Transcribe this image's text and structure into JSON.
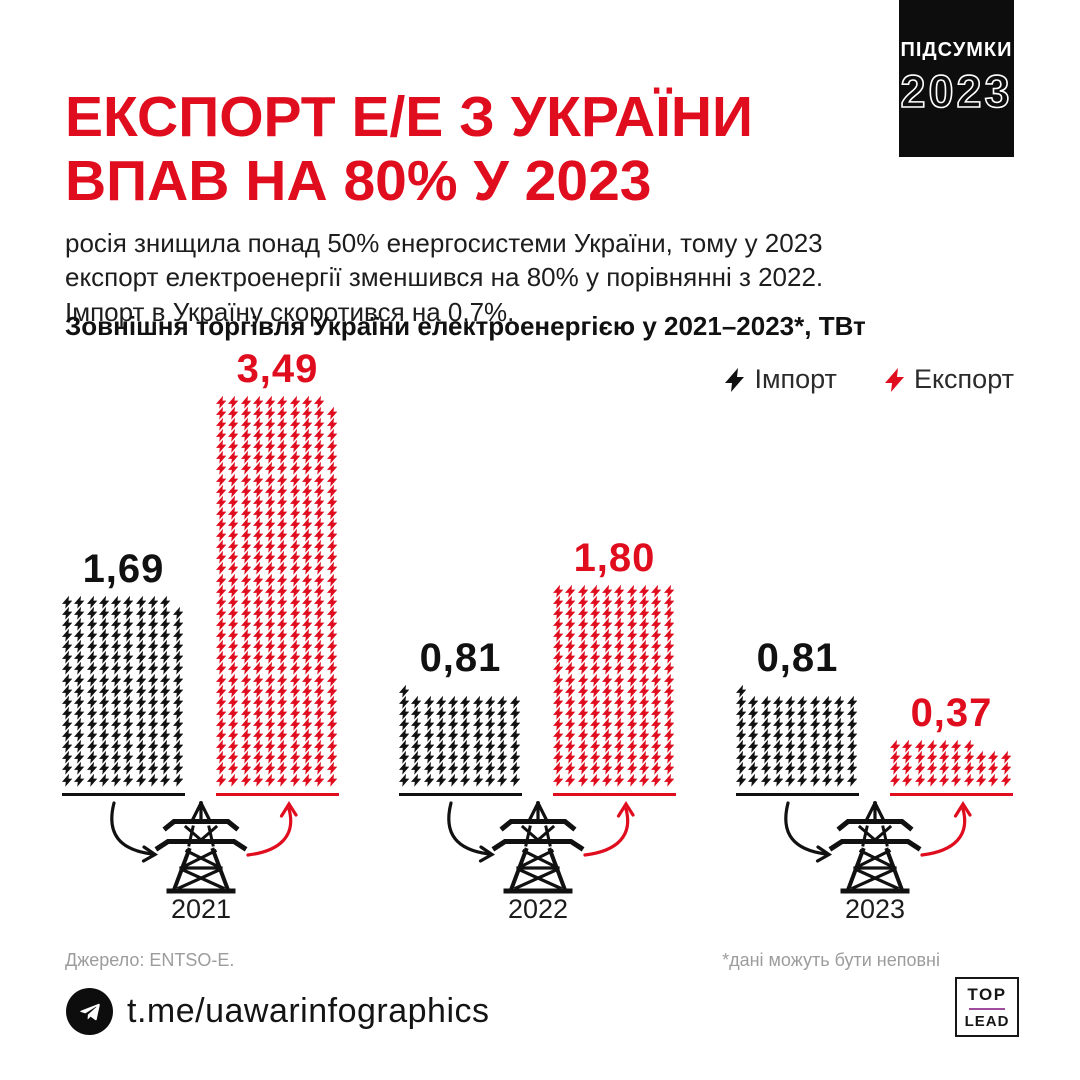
{
  "colors": {
    "accent_red": "#e00d1e",
    "ink_black": "#111111",
    "muted_gray": "#9c9c9c",
    "logo_line_purple": "#a14d9f"
  },
  "badge": {
    "kicker": "ПІДСУМКИ",
    "year": "2023"
  },
  "title": "ЕКСПОРТ Е/Е З УКРАЇНИ\nВПАВ НА 80% У 2023",
  "intro": "росія знищила понад 50% енергосистеми України, тому у 2023\nекспорт електроенергії зменшився на 80% у порівнянні з 2022.\nІмпорт в Україну скоротився на 0,7%.",
  "chart_data": {
    "type": "bar",
    "variant": "pictogram",
    "title": "Зовнішня торгівля України електроенергією у 2021–2023*, ТВт",
    "unit": "ТВт",
    "icon": "lightning-bolt",
    "icon_value": 0.01,
    "grid": false,
    "legend_position": "top-right",
    "legend": [
      {
        "name": "Імпорт",
        "color": "#111111"
      },
      {
        "name": "Експорт",
        "color": "#e00d1e"
      }
    ],
    "categories": [
      "2021",
      "2022",
      "2023"
    ],
    "series": [
      {
        "name": "Імпорт",
        "color": "#111111",
        "values": [
          1.69,
          0.81,
          0.81
        ],
        "labels": [
          "1,69",
          "0,81",
          "0,81"
        ]
      },
      {
        "name": "Експорт",
        "color": "#e00d1e",
        "values": [
          3.49,
          1.8,
          0.37
        ],
        "labels": [
          "3,49",
          "1,80",
          "0,37"
        ]
      }
    ],
    "ylim": [
      0,
      3.49
    ],
    "annotations": "тower icon between bars of each year: black arrow = import into Ukraine, red arrow = export out"
  },
  "footnotes": {
    "source": "Джерело: ENTSO-E.",
    "note": "*дані можуть бути неповні"
  },
  "footer": {
    "link": "t.me/uawarinfographics",
    "logo": {
      "top": "TOP",
      "bottom": "LEAD"
    }
  }
}
